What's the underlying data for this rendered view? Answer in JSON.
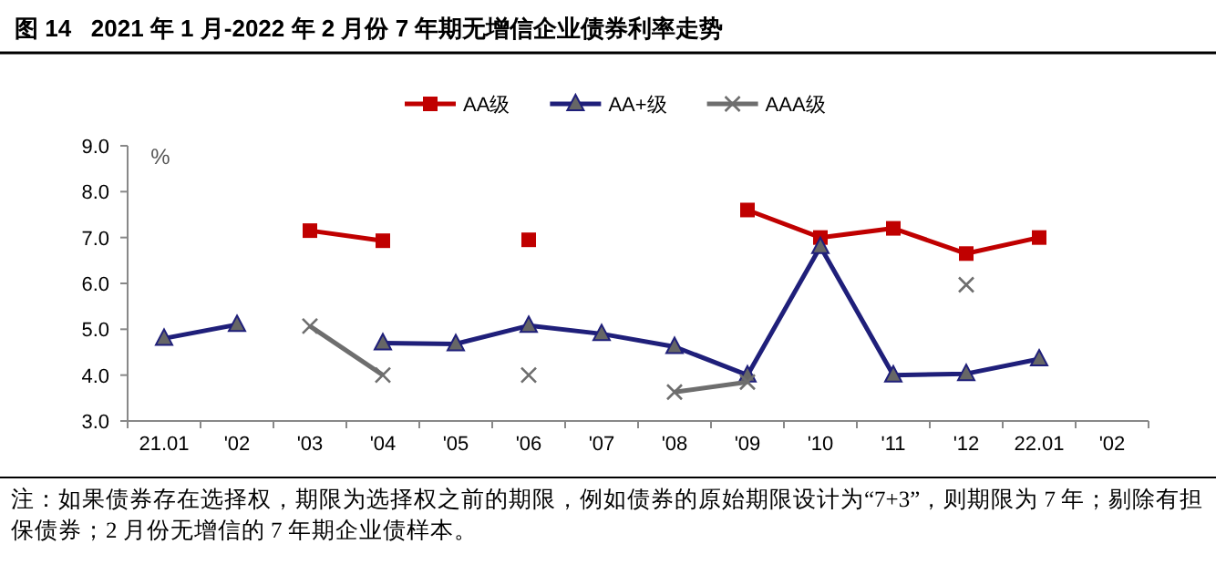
{
  "chart_data": {
    "type": "line",
    "title": "图 14   2021 年 1 月-2022 年 2 月份 7 年期无增信企业债券利率走势",
    "ylabel": "%",
    "categories": [
      "21.01",
      "'02",
      "'03",
      "'04",
      "'05",
      "'06",
      "'07",
      "'08",
      "'09",
      "'10",
      "'11",
      "'12",
      "22.01",
      "'02"
    ],
    "series": [
      {
        "name": "AA级",
        "color": "#c00000",
        "marker": "square",
        "values": [
          null,
          null,
          7.15,
          6.93,
          null,
          6.95,
          null,
          null,
          7.6,
          7.0,
          7.2,
          6.65,
          7.0,
          null
        ]
      },
      {
        "name": "AA+级",
        "color": "#1f1f7a",
        "marker": "triangle",
        "values": [
          4.8,
          5.1,
          null,
          4.7,
          4.68,
          5.08,
          4.9,
          4.62,
          4.0,
          6.8,
          4.0,
          4.03,
          4.35,
          null
        ]
      },
      {
        "name": "AAA级",
        "color": "#6e6e6e",
        "marker": "cross",
        "values": [
          null,
          null,
          5.07,
          4.0,
          null,
          4.0,
          null,
          3.63,
          3.85,
          null,
          null,
          5.97,
          null,
          null
        ]
      }
    ],
    "ylim": [
      3,
      9
    ],
    "yticks": [
      {
        "value": 3,
        "label": "3.0"
      },
      {
        "value": 4,
        "label": "4.0"
      },
      {
        "value": 5,
        "label": "5.0"
      },
      {
        "value": 6,
        "label": "6.0"
      },
      {
        "value": 7,
        "label": "7.0"
      },
      {
        "value": 8,
        "label": "8.0"
      },
      {
        "value": 9,
        "label": "9.0"
      }
    ],
    "legend": "top",
    "grid": false,
    "line_style": "solid",
    "annotations": [
      "注：如果债券存在选择权，期限为选择权之前的期限，例如债券的原始期限设计为“7+3”，则期限为 7 年；剔除有担保债券；2 月份无增信的 7 年期企业债样本。"
    ]
  }
}
